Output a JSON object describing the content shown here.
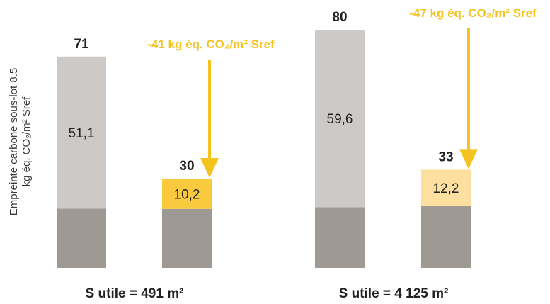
{
  "chart_data": {
    "type": "bar",
    "stacked": true,
    "ylabel_line1": "Empreinte carbone sous-lot 8.5",
    "ylabel_line2": "kg éq. CO₂/m² Sref",
    "groups": [
      {
        "label": "S utile = 491 m²",
        "bars": [
          {
            "total": 71,
            "segments": [
              {
                "value": 19.9,
                "color": "#9e9993"
              },
              {
                "value": 51.1,
                "label": "51,1",
                "color": "#cdc9c6"
              }
            ]
          },
          {
            "total": 30,
            "segments": [
              {
                "value": 19.8,
                "color": "#9e9993"
              },
              {
                "value": 10.2,
                "label": "10,2",
                "color": "#f9c93e"
              }
            ]
          }
        ],
        "annotation": "-41 kg éq. CO₂/m² Sref"
      },
      {
        "label": "S utile = 4 125 m²",
        "bars": [
          {
            "total": 80,
            "segments": [
              {
                "value": 20.4,
                "color": "#9e9993"
              },
              {
                "value": 59.6,
                "label": "59,6",
                "color": "#cdc9c6"
              }
            ]
          },
          {
            "total": 33,
            "segments": [
              {
                "value": 20.8,
                "color": "#9e9993"
              },
              {
                "value": 12.2,
                "label": "12,2",
                "color": "#fde0a0"
              }
            ]
          }
        ],
        "annotation": "-47 kg éq. CO₂/m² Sref"
      }
    ],
    "colors": {
      "annotation": "#f5c320",
      "text": "#222222"
    }
  }
}
